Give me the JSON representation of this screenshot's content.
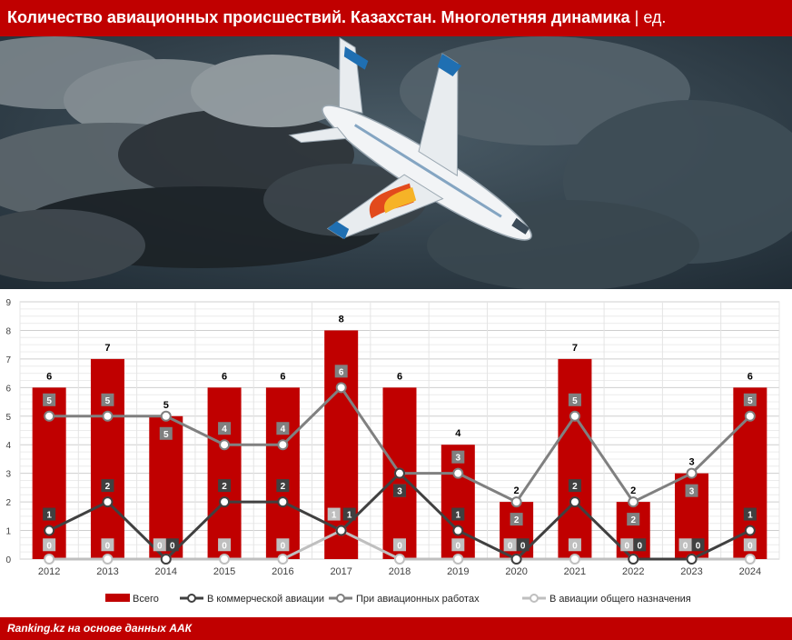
{
  "header": {
    "title": "Количество авиационных происшествий. Казахстан. Многолетняя динамика",
    "separator": "|",
    "unit": "ед."
  },
  "footer": {
    "source": "Ranking.kz на основе данных ААК"
  },
  "colors": {
    "brand_red": "#c00000",
    "total": "#c00000",
    "commercial": "#404040",
    "aviation_works": "#808080",
    "general": "#bfbfbf"
  },
  "chart_data": {
    "type": "bar",
    "categories": [
      "2012",
      "2013",
      "2014",
      "2015",
      "2016",
      "2017",
      "2018",
      "2019",
      "2020",
      "2021",
      "2022",
      "2023",
      "2024"
    ],
    "ylim": [
      0,
      9
    ],
    "yticks": [
      0,
      1,
      2,
      3,
      4,
      5,
      6,
      7,
      8,
      9
    ],
    "grid": true,
    "legend_position": "bottom",
    "series": [
      {
        "name": "Всего",
        "kind": "bar",
        "values": [
          6,
          7,
          5,
          6,
          6,
          8,
          6,
          4,
          2,
          7,
          2,
          3,
          6
        ]
      },
      {
        "name": "В коммерческой авиации",
        "kind": "line",
        "values": [
          1,
          2,
          0,
          2,
          2,
          1,
          3,
          1,
          0,
          2,
          0,
          0,
          1
        ]
      },
      {
        "name": "При авиационных работах",
        "kind": "line",
        "values": [
          5,
          5,
          5,
          4,
          4,
          6,
          3,
          3,
          2,
          5,
          2,
          3,
          5
        ]
      },
      {
        "name": "В авиации общего назначения",
        "kind": "line",
        "values": [
          0,
          0,
          0,
          0,
          0,
          1,
          0,
          0,
          0,
          0,
          0,
          0,
          0
        ]
      }
    ]
  }
}
